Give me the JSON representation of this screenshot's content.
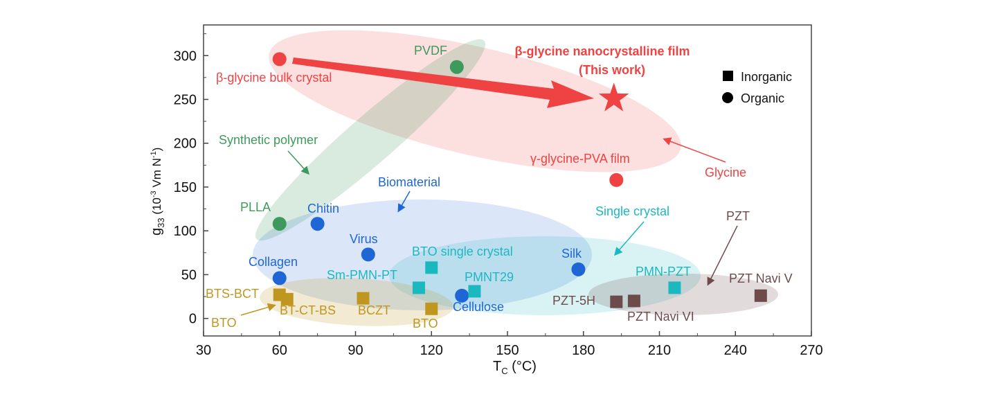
{
  "chart_data": {
    "type": "scatter",
    "xlabel": "T",
    "xlabel_sub": "C",
    "xlabel_unit": " (°C)",
    "ylabel": "g",
    "ylabel_sub": "33",
    "ylabel_unit_a": " (10",
    "ylabel_unit_exp": "-3",
    "ylabel_unit_b": " Vm N",
    "ylabel_unit_exp2": "-1",
    "ylabel_unit_c": ")",
    "xlim": [
      30,
      270
    ],
    "ylim": [
      -20,
      335
    ],
    "xticks": [
      30,
      60,
      90,
      120,
      150,
      180,
      210,
      240,
      270
    ],
    "yticks": [
      0,
      50,
      100,
      150,
      200,
      250,
      300
    ],
    "grid": false,
    "legend": {
      "position": "top-right",
      "items": [
        {
          "marker": "square",
          "label": "Inorganic"
        },
        {
          "marker": "circle",
          "label": "Organic"
        }
      ]
    },
    "colors": {
      "glycine": "#ef4343",
      "synthetic": "#3e9a5c",
      "bio": "#1e66d6",
      "single": "#1cb8c0",
      "ceramic": "#bf9720",
      "pzt": "#6e4b4b"
    },
    "points": [
      {
        "label": "β-glycine bulk crystal",
        "x": 60,
        "y": 296,
        "marker": "circle",
        "group": "glycine"
      },
      {
        "label": "PVDF",
        "x": 130,
        "y": 287,
        "marker": "circle",
        "group": "synthetic"
      },
      {
        "label": "β-glycine nanocrystalline film",
        "x": 192,
        "y": 251,
        "marker": "star",
        "group": "glycine"
      },
      {
        "label": "γ-glycine-PVA film",
        "x": 193,
        "y": 158,
        "marker": "circle",
        "group": "glycine"
      },
      {
        "label": "PLLA",
        "x": 60,
        "y": 108,
        "marker": "circle",
        "group": "synthetic"
      },
      {
        "label": "Chitin",
        "x": 75,
        "y": 108,
        "marker": "circle",
        "group": "bio"
      },
      {
        "label": "Virus",
        "x": 95,
        "y": 73,
        "marker": "circle",
        "group": "bio"
      },
      {
        "label": "Collagen",
        "x": 60,
        "y": 46,
        "marker": "circle",
        "group": "bio"
      },
      {
        "label": "Silk",
        "x": 178,
        "y": 56,
        "marker": "circle",
        "group": "bio"
      },
      {
        "label": "Cellulose",
        "x": 132,
        "y": 26,
        "marker": "circle",
        "group": "bio"
      },
      {
        "label": "BTO single crystal",
        "x": 120,
        "y": 58,
        "marker": "square",
        "group": "single"
      },
      {
        "label": "Sm-PMN-PT",
        "x": 115,
        "y": 35,
        "marker": "square",
        "group": "single"
      },
      {
        "label": "PMNT29",
        "x": 137,
        "y": 31,
        "marker": "square",
        "group": "single"
      },
      {
        "label": "PMN-PZT",
        "x": 216,
        "y": 35,
        "marker": "square",
        "group": "single"
      },
      {
        "label": "BTS-BCT",
        "x": 60,
        "y": 27,
        "marker": "square",
        "group": "ceramic"
      },
      {
        "label": "BT-CT-BS",
        "x": 63,
        "y": 22,
        "marker": "square",
        "group": "ceramic"
      },
      {
        "label": "BCZT",
        "x": 93,
        "y": 23,
        "marker": "square",
        "group": "ceramic"
      },
      {
        "label": "BTO",
        "x": 120,
        "y": 11,
        "marker": "square",
        "group": "ceramic"
      },
      {
        "label": "PZT-5H",
        "x": 193,
        "y": 19,
        "marker": "square",
        "group": "pzt"
      },
      {
        "label": "PZT Navi VI",
        "x": 200,
        "y": 20,
        "marker": "square",
        "group": "pzt"
      },
      {
        "label": "PZT Navi V",
        "x": 250,
        "y": 26,
        "marker": "square",
        "group": "pzt"
      }
    ],
    "annotations": {
      "this_work_1": "β-glycine nanocrystalline film",
      "this_work_2": "(This work)",
      "glycine": "Glycine",
      "synthetic": "Synthetic polymer",
      "bio": "Biomaterial",
      "single": "Single crystal",
      "pzt": "PZT",
      "bto_left": "BTO"
    }
  }
}
